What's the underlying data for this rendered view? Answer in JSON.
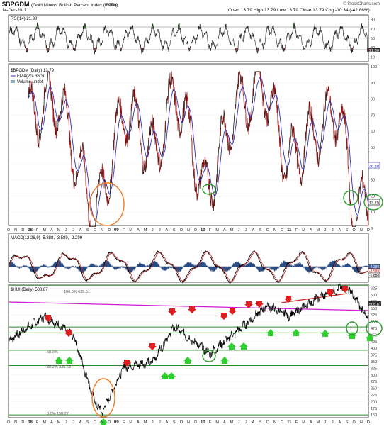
{
  "header": {
    "symbol": "$BPGDM",
    "name": "(Gold Miners Bullish Percent Index (EOD))",
    "exchange": "INDX",
    "date": "14-Dec-2011",
    "ohlc": "Open 13.79  High 13.79  Low 13.79  Close 13.79  Chg -10.34 (-42.86%)",
    "credit": "© StockCharts.com"
  },
  "rsi_panel": {
    "label": "RSI(14) 21.30",
    "ticks": [
      "90",
      "70",
      "50",
      "30",
      "10"
    ],
    "value_badge": "21.30",
    "colors": {
      "overbought": "#4a7a40",
      "oversold": "#8a4a4a"
    }
  },
  "bpi_panel": {
    "legend": [
      "$BPGDM (Daily) 13.79",
      "EMA(20) 36.30",
      "Volume undef"
    ],
    "ticks": [
      "100",
      "90",
      "80",
      "70",
      "60",
      "50",
      "40",
      "30",
      "20",
      "10",
      "0"
    ],
    "badges": [
      "36.30",
      "13.79"
    ],
    "colors": {
      "price": "#000000",
      "ema": "#3030b0",
      "down": "#c02020"
    }
  },
  "date_axis": {
    "labels": [
      "O",
      "N",
      "D",
      "08",
      "F",
      "M",
      "A",
      "M",
      "J",
      "J",
      "A",
      "S",
      "O",
      "N",
      "D",
      "09",
      "F",
      "M",
      "A",
      "M",
      "J",
      "J",
      "A",
      "S",
      "O",
      "N",
      "D",
      "10",
      "F",
      "M",
      "A",
      "M",
      "J",
      "J",
      "A",
      "S",
      "O",
      "N",
      "D",
      "11",
      "F",
      "M",
      "A",
      "M",
      "J",
      "J",
      "A",
      "S",
      "O",
      "N",
      "D"
    ]
  },
  "macd_panel": {
    "label": "MACD(12,26,9) -5.888, -3.589, -2.299",
    "badges": [
      "-2.299",
      "-3.589",
      "-5.888"
    ],
    "colors": {
      "macd": "#000000",
      "signal": "#c02020",
      "histogram": "#3a5f9a"
    }
  },
  "hui_panel": {
    "label": "$HUI (Daily) 508.87",
    "ticks": [
      "625",
      "600",
      "575",
      "550",
      "525",
      "500",
      "475",
      "450",
      "425",
      "400",
      "375",
      "350",
      "325",
      "300",
      "275",
      "250",
      "225",
      "200",
      "175",
      "150"
    ],
    "fib_labels": [
      "100.0% 635.51",
      "50.0%",
      "38.2% 335.63",
      "0.0% 150.27"
    ],
    "value_badge": "508.87",
    "colors": {
      "price": "#000000",
      "support": "#2a8a2a",
      "trend": "#d01ad0",
      "resistance": "#d02020"
    }
  },
  "annotation_colors": {
    "ellipse_crash": "#f07a20",
    "ellipse_buy": "#2a9a2a",
    "arrow_down": "#e02020",
    "arrow_up": "#30d030"
  },
  "chart_data": [
    {
      "type": "line",
      "title": "RSI(14)",
      "ylim": [
        0,
        100
      ],
      "reference_lines": [
        70,
        50,
        30
      ],
      "last_value": 21.3
    },
    {
      "type": "line",
      "title": "$BPGDM (Daily)",
      "ylim": [
        0,
        100
      ],
      "x": [
        "2008-02",
        "2008-06",
        "2008-09",
        "2008-11",
        "2009-03",
        "2009-07",
        "2009-10",
        "2010-02",
        "2010-06",
        "2010-10",
        "2011-01",
        "2011-05",
        "2011-08",
        "2011-10",
        "2011-12"
      ],
      "series": [
        {
          "name": "$BPGDM",
          "values": [
            70,
            80,
            35,
            5,
            75,
            45,
            85,
            20,
            75,
            90,
            40,
            60,
            75,
            10,
            13.79
          ]
        },
        {
          "name": "EMA(20)",
          "values": [
            65,
            70,
            45,
            12,
            65,
            50,
            75,
            28,
            65,
            82,
            45,
            55,
            70,
            20,
            36.3
          ]
        }
      ]
    },
    {
      "type": "line",
      "title": "MACD(12,26,9)",
      "last_values": {
        "macd": -5.888,
        "signal": -3.589,
        "histogram": -2.299
      }
    },
    {
      "type": "line",
      "title": "$HUI (Daily)",
      "ylim": [
        140,
        640
      ],
      "x": [
        "2007-10",
        "2008-03",
        "2008-07",
        "2008-10",
        "2008-11",
        "2009-02",
        "2009-06",
        "2009-09",
        "2010-02",
        "2010-06",
        "2010-10",
        "2011-01",
        "2011-05",
        "2011-09",
        "2011-12"
      ],
      "series": [
        {
          "name": "$HUI",
          "values": [
            430,
            520,
            450,
            200,
            160,
            330,
            350,
            480,
            380,
            470,
            560,
            520,
            590,
            635,
            508.87
          ]
        }
      ],
      "fib_levels": [
        {
          "label": "100.0%",
          "value": 635.51
        },
        {
          "label": "50.0%",
          "value": 392.9
        },
        {
          "label": "38.2%",
          "value": 335.63
        },
        {
          "label": "0.0%",
          "value": 150.27
        }
      ]
    }
  ]
}
